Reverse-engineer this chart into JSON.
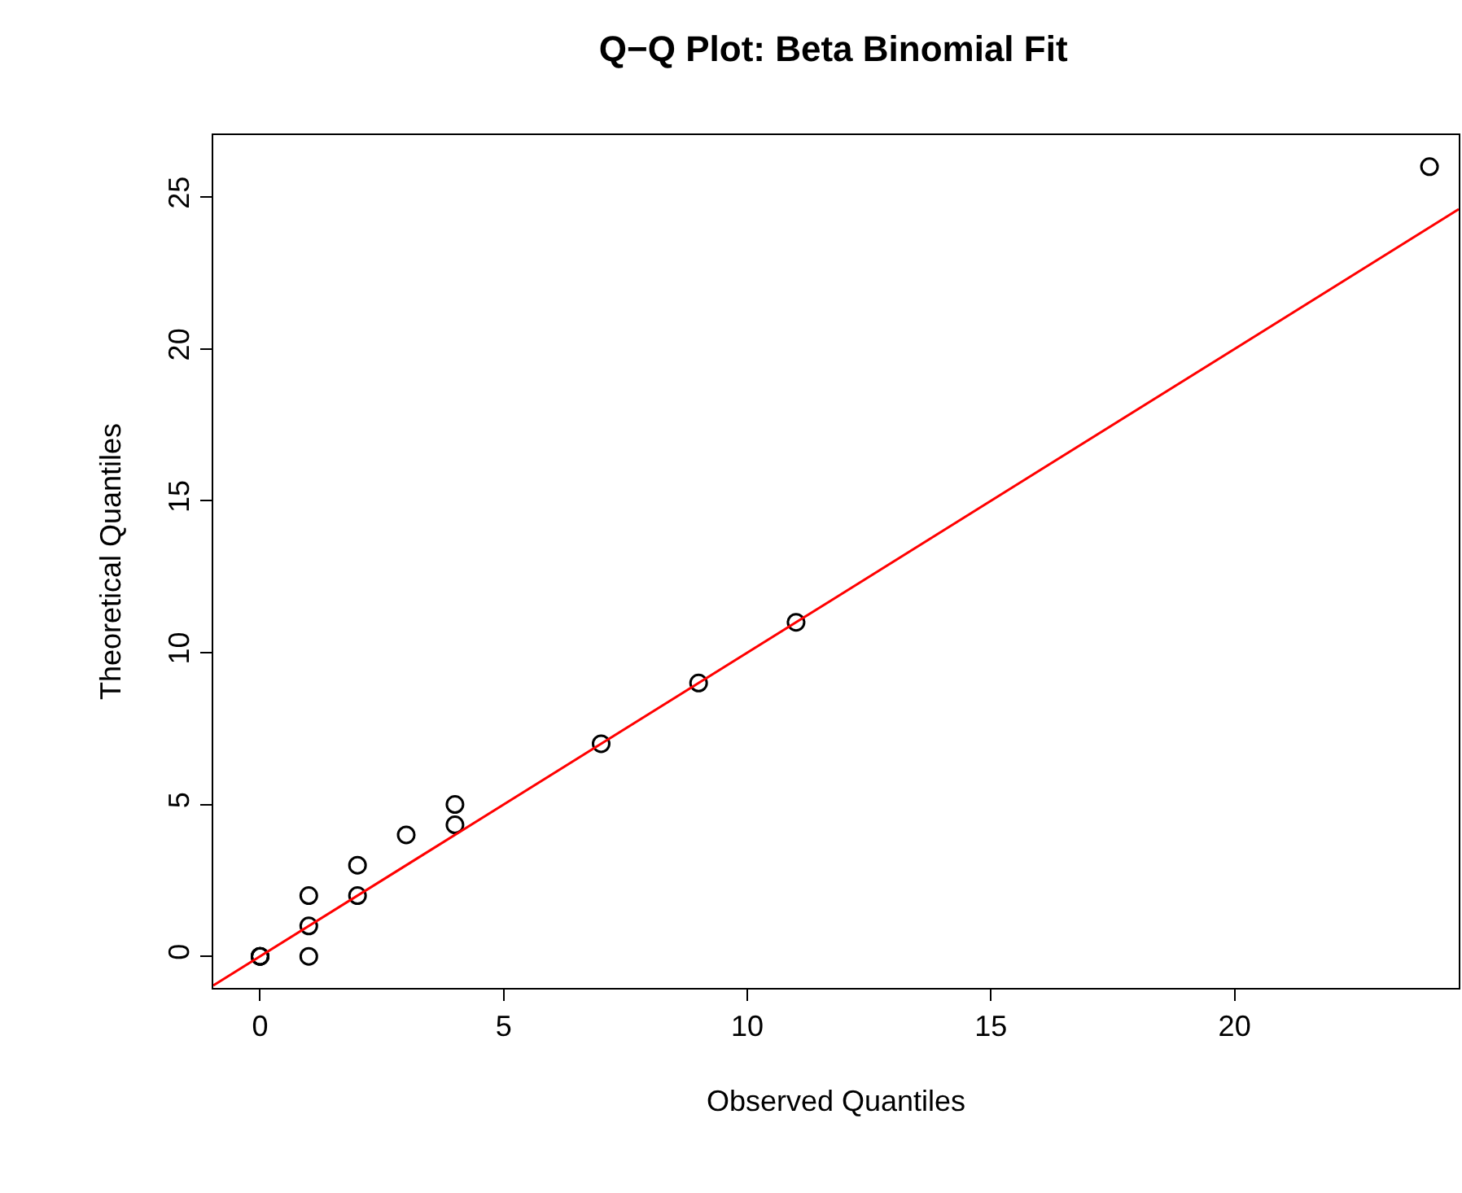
{
  "chart_data": {
    "type": "scatter",
    "title": "Q−Q Plot: Beta Binomial Fit",
    "xlabel": "Observed Quantiles",
    "ylabel": "Theoretical Quantiles",
    "series": [
      {
        "color": "#000000",
        "marker": "circle",
        "x": [
          0,
          0,
          0,
          1,
          1,
          1,
          2,
          2,
          3,
          4,
          4,
          7,
          9,
          11,
          24
        ],
        "values": [
          0,
          0,
          0,
          0,
          1,
          2,
          2,
          3,
          4,
          4.33,
          5,
          7,
          9,
          11,
          26
        ]
      },
      {
        "type": "line",
        "color": "#ff0000",
        "marker": "none",
        "line_style": "solid",
        "x": [
          -0.96,
          24.6
        ],
        "values": [
          -0.96,
          24.6
        ]
      }
    ],
    "xlim": [
      -0.96,
      24.6
    ],
    "ylim": [
      -1.04,
      27.04
    ],
    "xticks": [
      0,
      5,
      10,
      15,
      20
    ],
    "yticks": [
      0,
      5,
      10,
      15,
      20,
      25
    ]
  }
}
